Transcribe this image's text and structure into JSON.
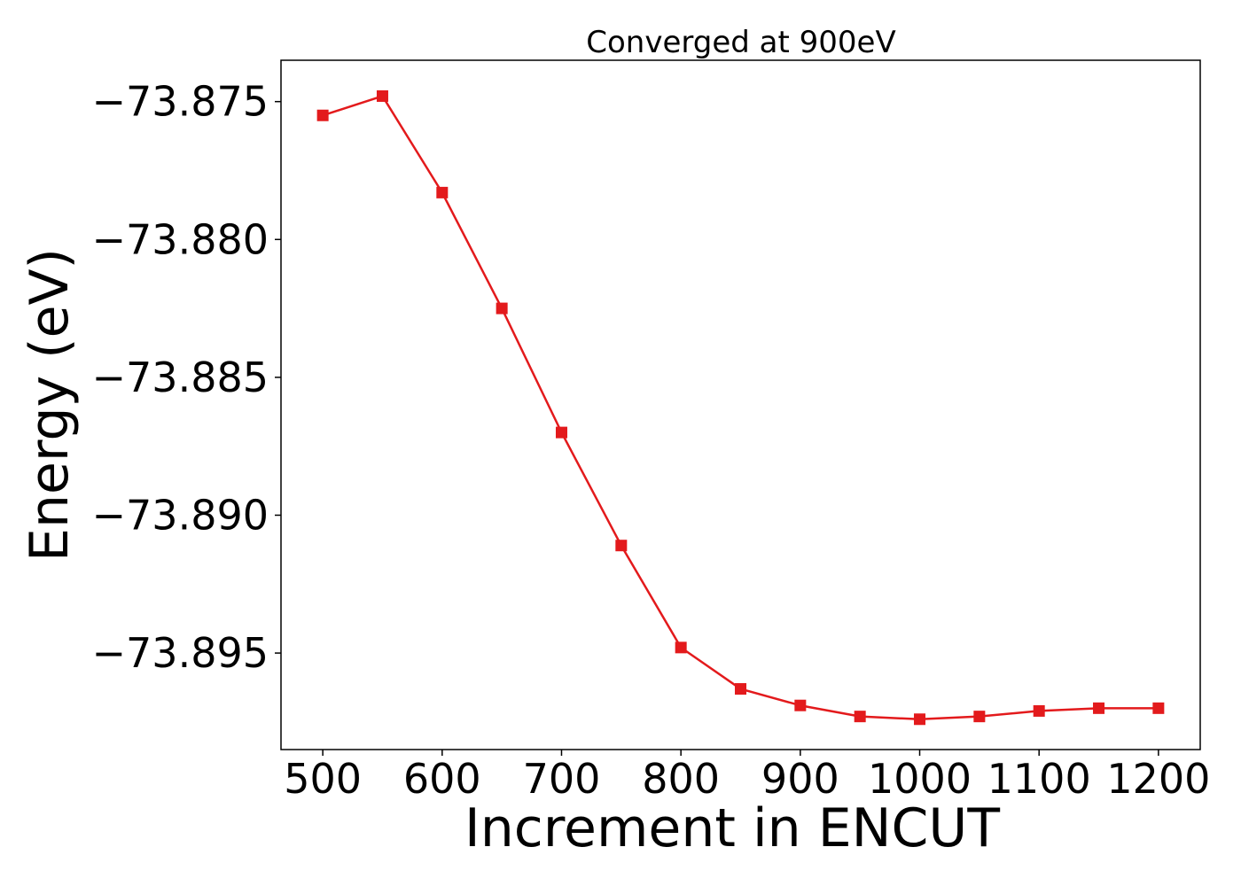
{
  "chart_data": {
    "type": "line",
    "title": "Converged at 900eV",
    "xlabel": "Increment in ENCUT",
    "ylabel": "Energy (eV)",
    "xlim": [
      465,
      1235
    ],
    "ylim": [
      -73.8985,
      -73.8735
    ],
    "xticks": [
      500,
      600,
      700,
      800,
      900,
      1000,
      1100,
      1200
    ],
    "yticks": [
      -73.875,
      -73.88,
      -73.885,
      -73.89,
      -73.895
    ],
    "ytick_labels": [
      "−73.875",
      "−73.880",
      "−73.885",
      "−73.890",
      "−73.895"
    ],
    "grid": false,
    "series": [
      {
        "color": "#e31a1c",
        "marker": "square",
        "x": [
          500,
          550,
          600,
          650,
          700,
          750,
          800,
          850,
          900,
          950,
          1000,
          1050,
          1100,
          1150,
          1200
        ],
        "y": [
          -73.8755,
          -73.8748,
          -73.8783,
          -73.8825,
          -73.887,
          -73.8911,
          -73.8948,
          -73.8963,
          -73.8969,
          -73.8973,
          -73.8974,
          -73.8973,
          -73.8971,
          -73.897,
          -73.897
        ]
      }
    ]
  }
}
